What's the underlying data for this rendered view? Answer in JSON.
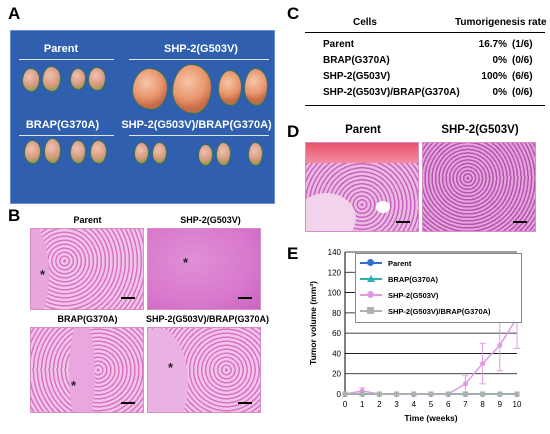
{
  "panels": {
    "A": {
      "letter": "A",
      "groups": [
        "Parent",
        "SHP-2(G503V)",
        "BRAP(G370A)",
        "SHP-2(G503V)/BRAP(G370A)"
      ]
    },
    "B": {
      "letter": "B",
      "titles": [
        "Parent",
        "SHP-2(G503V)",
        "BRAP(G370A)",
        "SHP-2(G503V)/BRAP(G370A)"
      ],
      "star": "*"
    },
    "C": {
      "letter": "C",
      "header_cells": "Cells",
      "header_rate": "Tumorigenesis rate",
      "rows": [
        {
          "cells": "Parent",
          "pct": "16.7%",
          "frac": "(1/6)"
        },
        {
          "cells": "BRAP(G370A)",
          "pct": "0%",
          "frac": "(0/6)"
        },
        {
          "cells": "SHP-2(G503V)",
          "pct": "100%",
          "frac": "(6/6)"
        },
        {
          "cells": "SHP-2(G503V)/BRAP(G370A)",
          "pct": "0%",
          "frac": "(0/6)"
        }
      ]
    },
    "D": {
      "letter": "D",
      "titles": [
        "Parent",
        "SHP-2(G503V)"
      ]
    },
    "E": {
      "letter": "E"
    }
  },
  "chart_data": {
    "type": "line",
    "xlabel": "Time (weeks)",
    "ylabel": "Tumor volume (mm³)",
    "xlim": [
      0,
      10
    ],
    "ylim": [
      0,
      140
    ],
    "xticks": [
      0,
      1,
      2,
      3,
      4,
      5,
      6,
      7,
      8,
      9,
      10
    ],
    "yticks": [
      0,
      20,
      40,
      60,
      80,
      100,
      120,
      140
    ],
    "grid": "horizontal",
    "legend_position": "top-left",
    "series": [
      {
        "name": "Parent",
        "color": "#2f6fd0",
        "marker": "circle",
        "x": [
          0,
          1,
          2,
          3,
          4,
          5,
          6,
          7,
          8,
          9,
          10
        ],
        "y": [
          0,
          0,
          0,
          0,
          0,
          0,
          0,
          0,
          0,
          0,
          0
        ],
        "err": [
          0,
          0,
          0,
          0,
          0,
          0,
          0,
          0,
          0,
          0,
          0
        ]
      },
      {
        "name": "BRAP(G370A)",
        "color": "#2fb0b0",
        "marker": "triangle",
        "x": [
          0,
          1,
          2,
          3,
          4,
          5,
          6,
          7,
          8,
          9,
          10
        ],
        "y": [
          0,
          0,
          0,
          0,
          0,
          0,
          0,
          0,
          0,
          0,
          0
        ],
        "err": [
          0,
          0,
          0,
          0,
          0,
          0,
          0,
          0,
          0,
          0,
          0
        ]
      },
      {
        "name": "SHP-2(G503V)",
        "color": "#e09ae0",
        "marker": "circle",
        "x": [
          0,
          1,
          2,
          3,
          4,
          5,
          6,
          7,
          8,
          9,
          10
        ],
        "y": [
          0,
          3,
          0,
          0,
          0,
          0,
          0,
          10,
          30,
          48,
          75
        ],
        "err": [
          0,
          3,
          0,
          0,
          0,
          0,
          0,
          8,
          20,
          25,
          30
        ]
      },
      {
        "name": "SHP-2(G503V)/BRAP(G370A)",
        "color": "#b0b0b0",
        "marker": "square",
        "x": [
          0,
          1,
          2,
          3,
          4,
          5,
          6,
          7,
          8,
          9,
          10
        ],
        "y": [
          0,
          0,
          0,
          0,
          0,
          0,
          0,
          0,
          0,
          0,
          0
        ],
        "err": [
          0,
          0,
          0,
          0,
          0,
          0,
          0,
          0,
          0,
          0,
          0
        ]
      }
    ]
  }
}
